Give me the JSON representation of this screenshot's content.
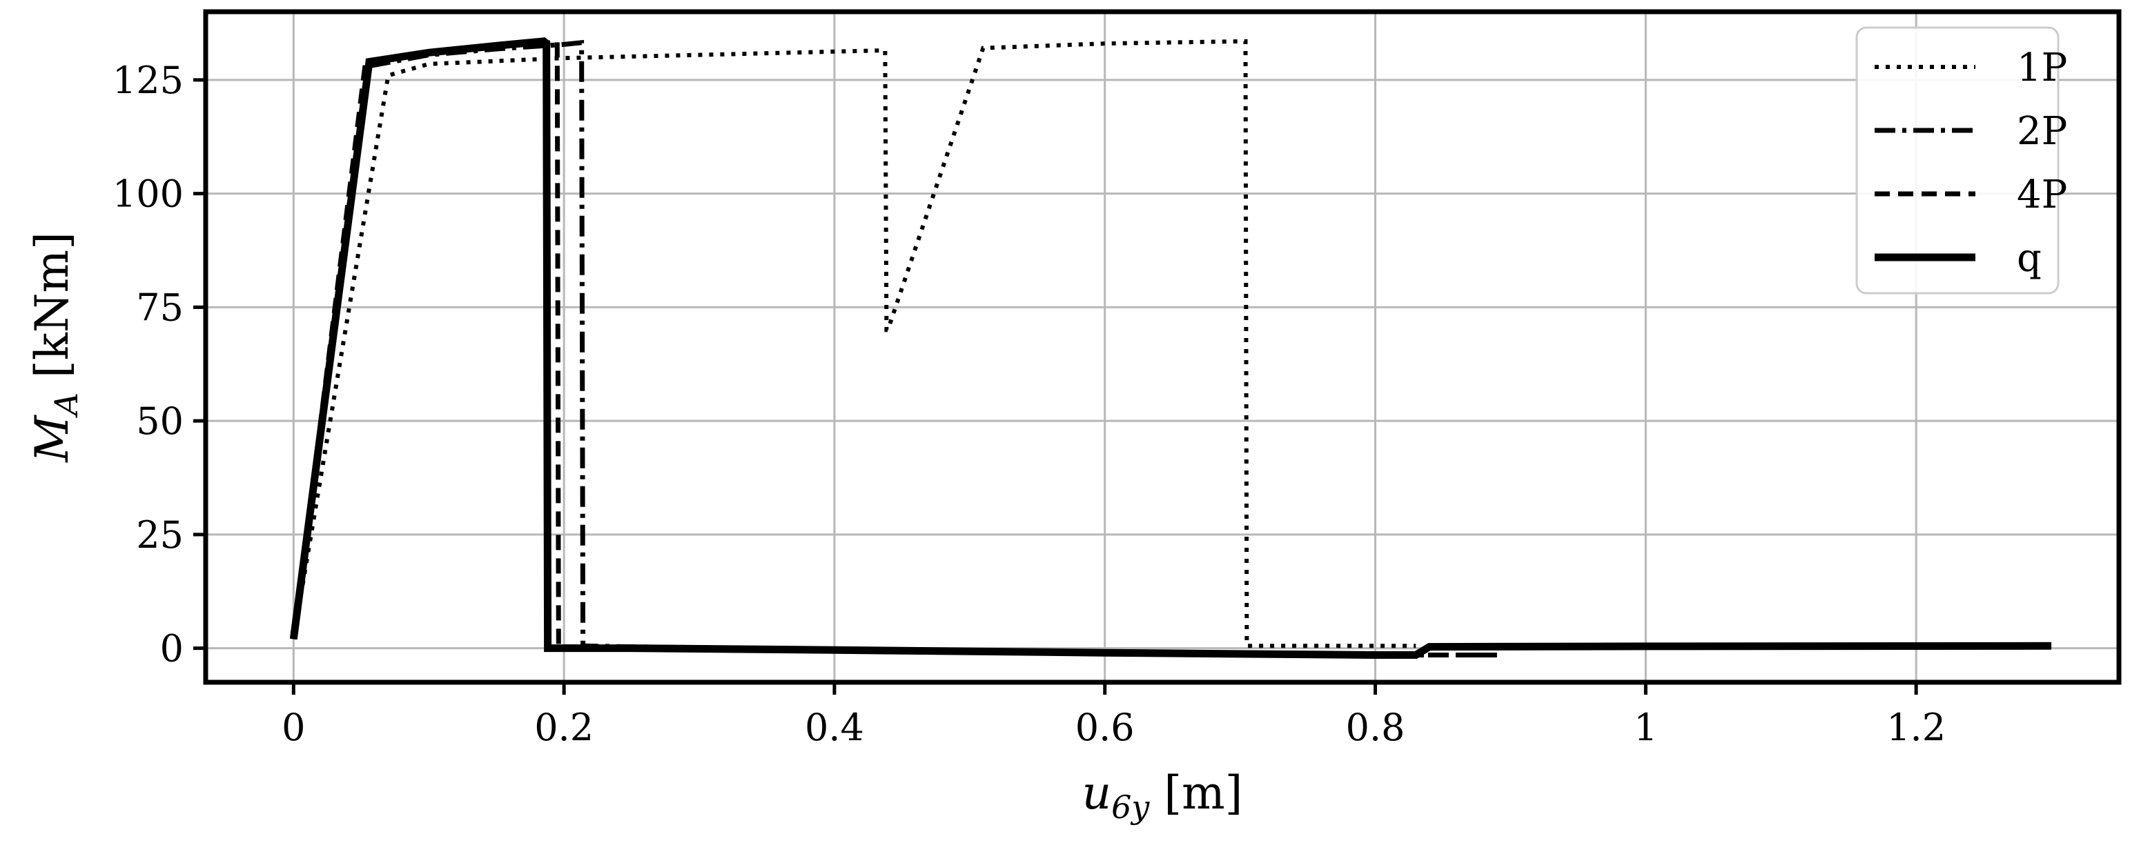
{
  "chart_data": {
    "type": "line",
    "title": "",
    "xlabel": {
      "main": "u",
      "sub": "6y",
      "unit": " [m]"
    },
    "ylabel": {
      "main": "M",
      "sub": "A",
      "unit": " [kNm]"
    },
    "xlim": [
      -0.065,
      1.35
    ],
    "ylim": [
      -7.5,
      140
    ],
    "xticks": [
      0,
      0.2,
      0.4,
      0.6,
      0.8,
      1,
      1.2
    ],
    "xtick_labels": [
      "0",
      "0.2",
      "0.4",
      "0.6",
      "0.8",
      "1",
      "1.2"
    ],
    "yticks": [
      0,
      25,
      50,
      75,
      100,
      125
    ],
    "ytick_labels": [
      "0",
      "25",
      "50",
      "75",
      "100",
      "125"
    ],
    "grid": true,
    "legend_position": "top-right",
    "series": [
      {
        "name": "1P",
        "style": "dotted",
        "x": [
          0.0,
          0.07,
          0.1,
          0.2,
          0.3,
          0.4375,
          0.4385,
          0.4395,
          0.51,
          0.6,
          0.704,
          0.705,
          0.83
        ],
        "y": [
          2,
          126,
          128.5,
          129.8,
          130.5,
          131.5,
          70,
          70,
          132,
          133,
          133.5,
          0.5,
          0.5
        ]
      },
      {
        "name": "2P",
        "style": "dashdot",
        "x": [
          0.0,
          0.055,
          0.1,
          0.15,
          0.2,
          0.213,
          0.214,
          0.25,
          0.4,
          0.6,
          0.8,
          0.85,
          0.89
        ],
        "y": [
          2,
          128,
          130.5,
          131.8,
          132.8,
          133.2,
          0.5,
          0.3,
          -0.2,
          -0.8,
          -1.5,
          -1.5,
          -1.5
        ]
      },
      {
        "name": "4P",
        "style": "dashed",
        "x": [
          0.0,
          0.053,
          0.1,
          0.15,
          0.19,
          0.195,
          0.196,
          0.25,
          0.4,
          0.6,
          0.8,
          0.85,
          0.89
        ],
        "y": [
          2,
          128.5,
          131,
          132.3,
          133.2,
          133.5,
          0.3,
          0.2,
          -0.3,
          -0.9,
          -1.5,
          -1.5,
          -1.5
        ]
      },
      {
        "name": "q",
        "style": "solid",
        "x": [
          0.0,
          0.056,
          0.1,
          0.15,
          0.185,
          0.187,
          0.188,
          0.25,
          0.4,
          0.6,
          0.8,
          0.83,
          0.84,
          1.0,
          1.3
        ],
        "y": [
          2,
          129,
          131,
          132.5,
          133.5,
          133,
          0,
          0,
          -0.4,
          -1,
          -1.5,
          -1.5,
          0.3,
          0.4,
          0.5
        ]
      }
    ]
  }
}
